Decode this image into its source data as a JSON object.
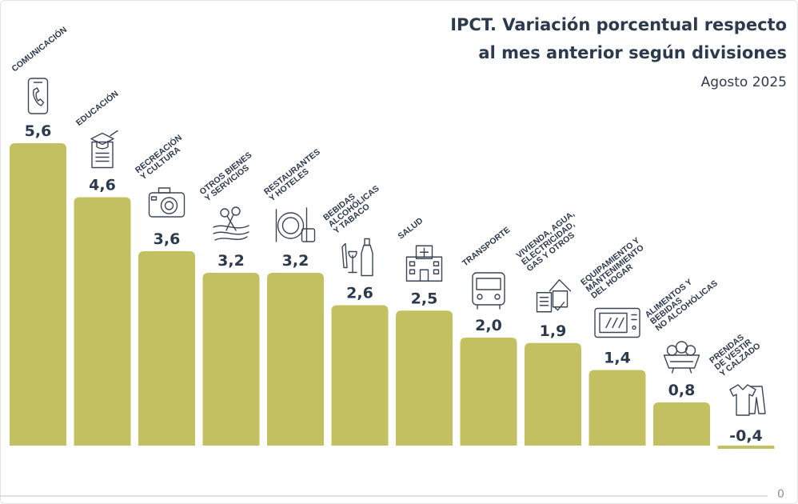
{
  "title_line1": "IPCT. Variación porcentual respecto",
  "title_line2": "al mes anterior según divisiones",
  "subtitle": "Agosto 2025",
  "zero_tick": "0",
  "colors": {
    "bar": "#c3c062",
    "text": "#2c3a4d",
    "axis": "#bfc3c8"
  },
  "chart_data": {
    "type": "bar",
    "title": "IPCT. Variación porcentual respecto al mes anterior según divisiones",
    "subtitle": "Agosto 2025",
    "categories": [
      [
        "COMUNICACIÓN"
      ],
      [
        "EDUCACIÓN"
      ],
      [
        "RECREACIÓN",
        "Y CULTURA"
      ],
      [
        "OTROS BIENES",
        "Y SERVICIOS"
      ],
      [
        "RESTAURANTES",
        "Y HOTELES"
      ],
      [
        "BEBIDAS",
        "ALCOHÓLICAS",
        "Y TABACO"
      ],
      [
        "SALUD"
      ],
      [
        "TRANSPORTE"
      ],
      [
        "VIVIENDA, AGUA,",
        "ELECTRICIDAD,",
        "GAS Y OTROS"
      ],
      [
        "EQUIPAMIENTO Y",
        "MANTENIMIENTO",
        "DEL HOGAR"
      ],
      [
        "ALIMENTOS Y",
        "BEBIDAS",
        "NO ALCOHÓLICAS"
      ],
      [
        "PRENDAS",
        "DE VESTIR",
        "Y CALZADO"
      ]
    ],
    "values": [
      5.6,
      4.6,
      3.6,
      3.2,
      3.2,
      2.6,
      2.5,
      2.0,
      1.9,
      1.4,
      0.8,
      -0.4
    ],
    "value_labels": [
      "5,6",
      "4,6",
      "3,6",
      "3,2",
      "3,2",
      "2,6",
      "2,5",
      "2,0",
      "1,9",
      "1,4",
      "0,8",
      "-0,4"
    ],
    "icons": [
      "phone-icon",
      "education-icon",
      "camera-icon",
      "scissors-icon",
      "plate-cutlery-icon",
      "bottles-icon",
      "hospital-icon",
      "bus-icon",
      "house-icon",
      "microwave-icon",
      "food-basket-icon",
      "clothing-icon"
    ],
    "ylim": [
      -0.4,
      5.6
    ],
    "grid": false,
    "legend": "none"
  }
}
